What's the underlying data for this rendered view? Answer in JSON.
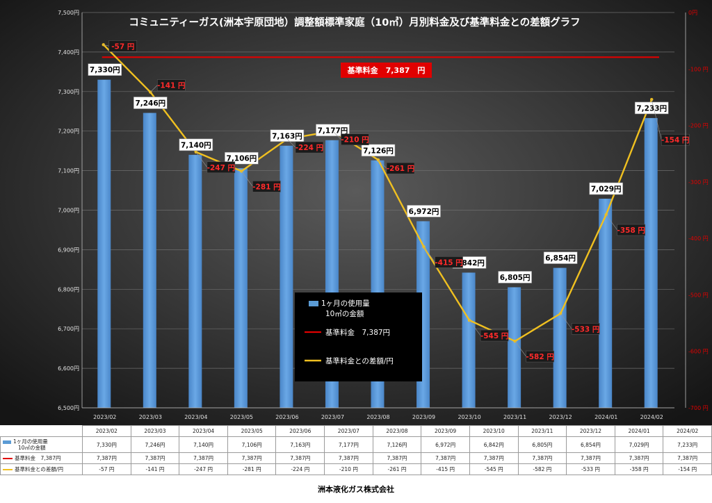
{
  "chart_data": {
    "type": "bar",
    "title": "コミュニティーガス(洲本宇原団地）調整額標準家庭（10㎥）月別料金及び基準料金との差額グラフ",
    "categories": [
      "2023/02",
      "2023/03",
      "2023/04",
      "2023/05",
      "2023/06",
      "2023/07",
      "2023/08",
      "2023/09",
      "2023/10",
      "2023/11",
      "2023/12",
      "2024/01",
      "2024/02"
    ],
    "series": [
      {
        "name": "1ヶ月の使用量 10㎥の金額",
        "type": "bar",
        "axis": "left",
        "color": "#5b9bd5",
        "values": [
          7330,
          7246,
          7140,
          7106,
          7163,
          7177,
          7126,
          6972,
          6842,
          6805,
          6854,
          7029,
          7233
        ]
      },
      {
        "name": "基準料金 7,387円",
        "type": "line",
        "axis": "left",
        "color": "#e00000",
        "values": [
          7387,
          7387,
          7387,
          7387,
          7387,
          7387,
          7387,
          7387,
          7387,
          7387,
          7387,
          7387,
          7387
        ]
      },
      {
        "name": "基準料金との差額/円",
        "type": "line",
        "axis": "right",
        "color": "#f0c020",
        "values": [
          -57,
          -141,
          -247,
          -281,
          -224,
          -210,
          -261,
          -415,
          -545,
          -582,
          -533,
          -358,
          -154
        ]
      }
    ],
    "bar_labels": [
      "7,330円",
      "7,246円",
      "7,140円",
      "7,106円",
      "7,163円",
      "7,177円",
      "7,126円",
      "6,972円",
      "6,842円",
      "6,805円",
      "6,854円",
      "7,029円",
      "7,233円"
    ],
    "diff_labels": [
      "-57 円",
      "-141 円",
      "-247 円",
      "-281 円",
      "-224 円",
      "-210 円",
      "-261 円",
      "-415 円",
      "-545 円",
      "-582 円",
      "-533 円",
      "-358 円",
      "-154 円"
    ],
    "left_axis": {
      "ylim": [
        6500,
        7500
      ],
      "ticks": [
        "6,500円",
        "6,600円",
        "6,700円",
        "6,800円",
        "6,900円",
        "7,000円",
        "7,100円",
        "7,200円",
        "7,300円",
        "7,400円",
        "7,500円"
      ]
    },
    "right_axis": {
      "ylim": [
        -700,
        0
      ],
      "ticks": [
        "0円",
        "-100 円",
        "-200 円",
        "-300 円",
        "-400 円",
        "-500 円",
        "-600 円",
        "-700 円"
      ],
      "color": "#e00000"
    },
    "base_label": "基準料金　7,387　円",
    "legend": {
      "placement": "center",
      "items": [
        {
          "key": "bar",
          "line1": "1ヶ月の使用量",
          "line2": "10㎥の金額"
        },
        {
          "key": "red",
          "line1": "基準料金　7,387円"
        },
        {
          "key": "gold",
          "line1": "基準料金との差額/円"
        }
      ]
    },
    "grid": true
  },
  "table": {
    "headers": [
      "2023/02",
      "2023/03",
      "2023/04",
      "2023/05",
      "2023/06",
      "2023/07",
      "2023/08",
      "2023/09",
      "2023/10",
      "2023/11",
      "2023/12",
      "2024/01",
      "2024/02"
    ],
    "rows": [
      {
        "label1": "1ヶ月の使用量",
        "label2": "10㎥の金額",
        "key": "bar",
        "cells": [
          "7,330円",
          "7,246円",
          "7,140円",
          "7,106円",
          "7,163円",
          "7,177円",
          "7,126円",
          "6,972円",
          "6,842円",
          "6,805円",
          "6,854円",
          "7,029円",
          "7,233円"
        ]
      },
      {
        "label1": "基準料金　7,387円",
        "key": "red",
        "cells": [
          "7,387円",
          "7,387円",
          "7,387円",
          "7,387円",
          "7,387円",
          "7,387円",
          "7,387円",
          "7,387円",
          "7,387円",
          "7,387円",
          "7,387円",
          "7,387円",
          "7,387円"
        ]
      },
      {
        "label1": "基準料金との差額/円",
        "key": "gold",
        "cells": [
          "-57 円",
          "-141 円",
          "-247 円",
          "-281 円",
          "-224 円",
          "-210 円",
          "-261 円",
          "-415 円",
          "-545 円",
          "-582 円",
          "-533 円",
          "-358 円",
          "-154 円"
        ]
      }
    ]
  },
  "footer": "洲本液化ガス株式会社"
}
